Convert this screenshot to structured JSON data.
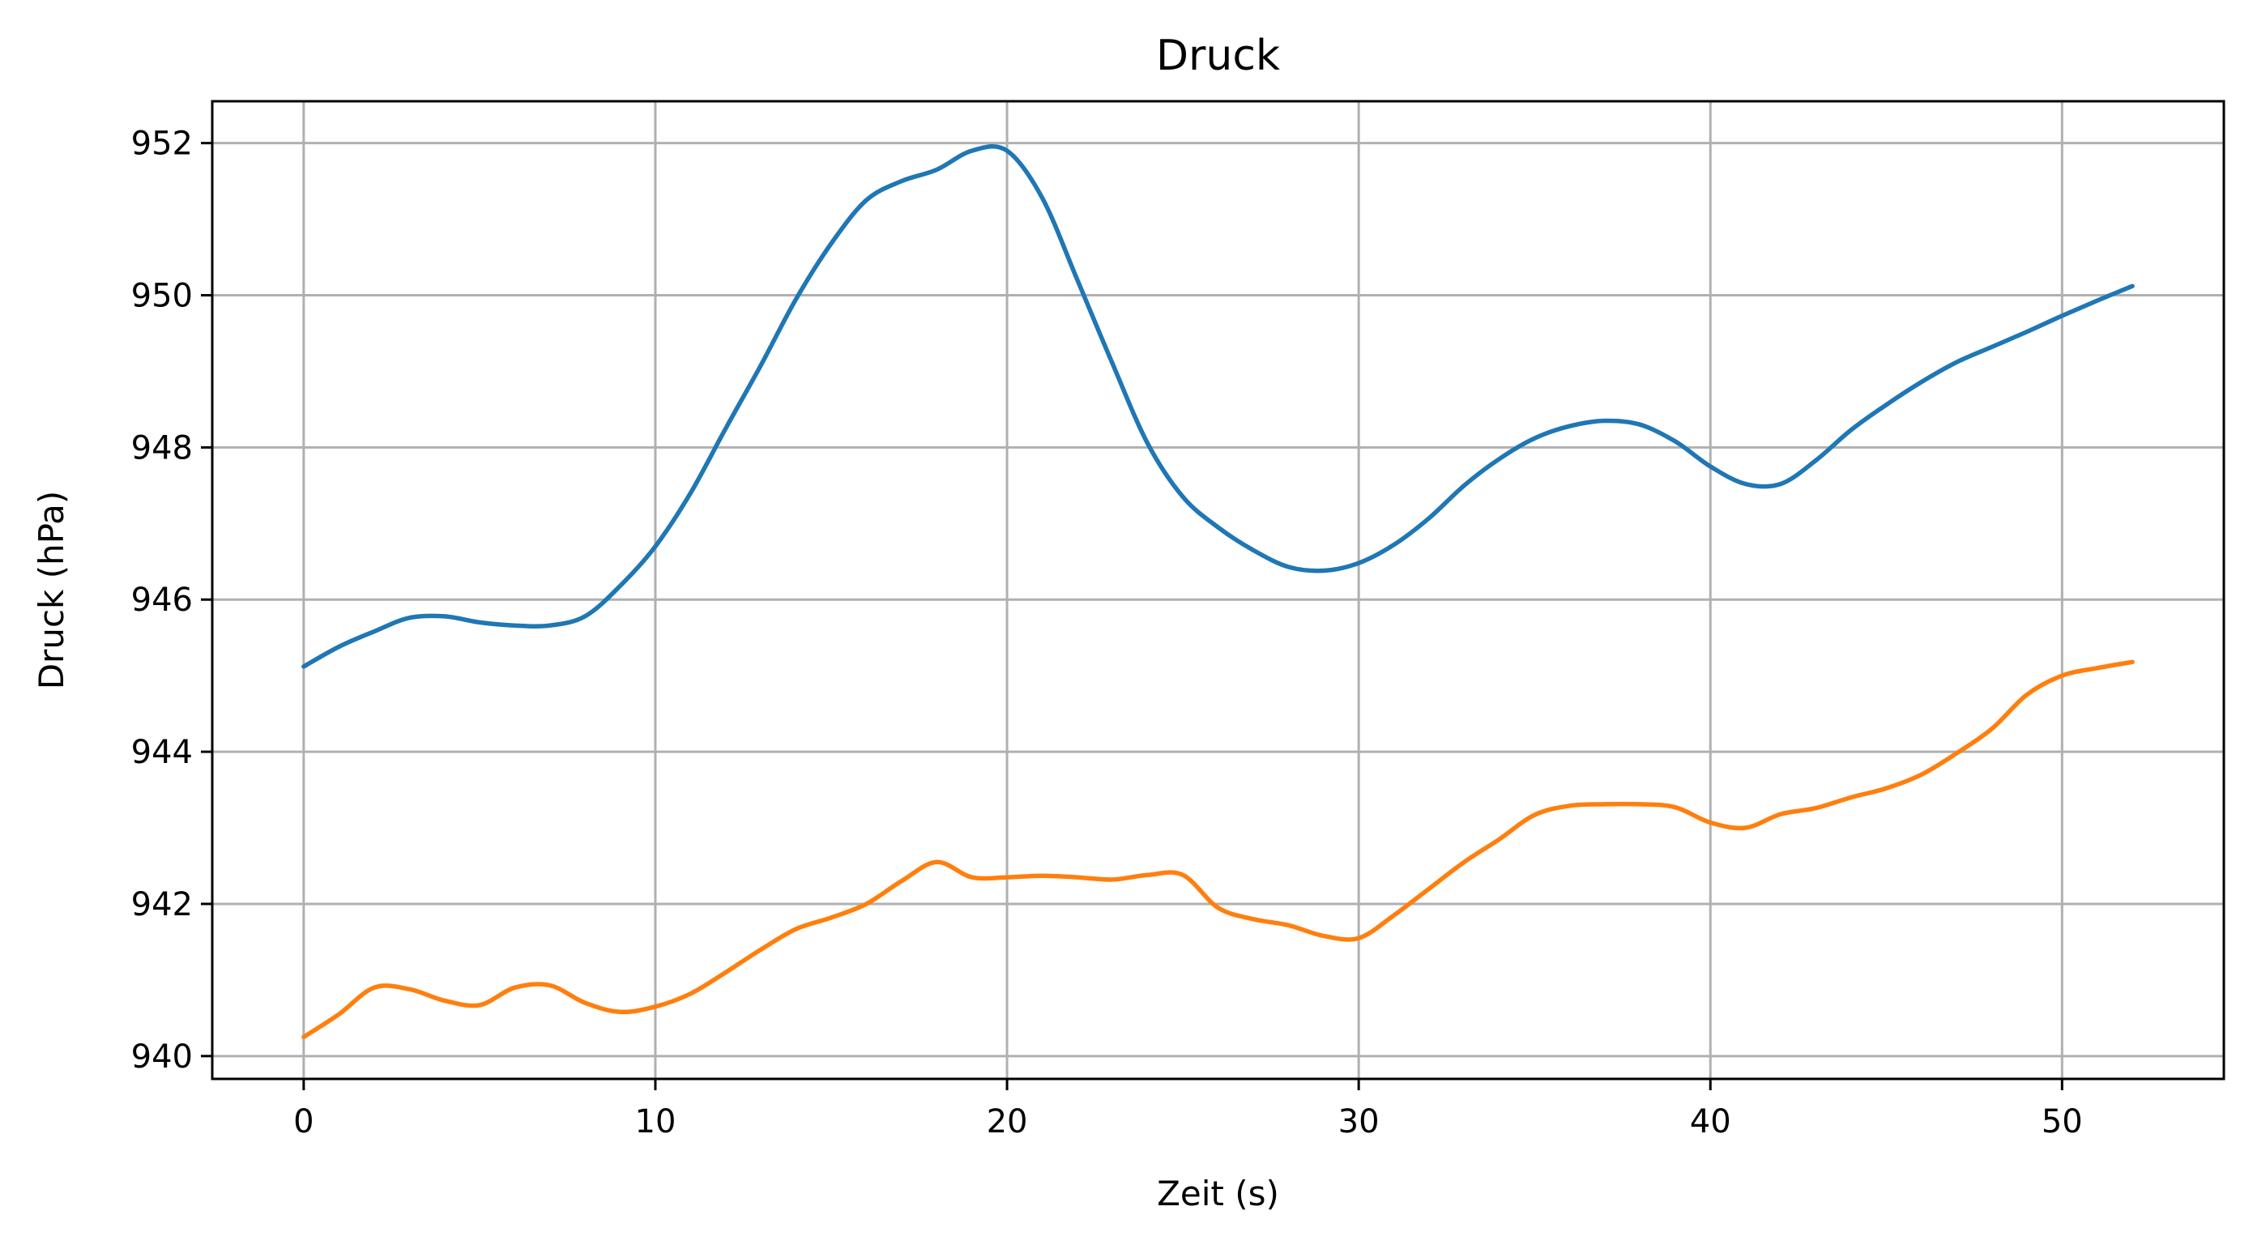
{
  "chart_data": {
    "type": "line",
    "title": "Druck",
    "xlabel": "Zeit (s)",
    "ylabel": "Druck (hPa)",
    "xlim": [
      -2.6,
      54.6
    ],
    "ylim": [
      939.7,
      952.55
    ],
    "xticks": [
      0,
      10,
      20,
      30,
      40,
      50
    ],
    "yticks": [
      940,
      942,
      944,
      946,
      948,
      950,
      952
    ],
    "grid": true,
    "series": [
      {
        "color": "#1f77b4",
        "x": [
          0,
          1,
          2,
          3,
          4,
          5,
          6,
          7,
          8,
          9,
          10,
          11,
          12,
          13,
          14,
          15,
          16,
          17,
          18,
          19,
          20,
          21,
          22,
          23,
          24,
          25,
          26,
          27,
          28,
          29,
          30,
          31,
          32,
          33,
          34,
          35,
          36,
          37,
          38,
          39,
          40,
          41,
          42,
          43,
          44,
          45,
          46,
          47,
          48,
          49,
          50,
          51,
          52
        ],
        "y": [
          945.12,
          945.38,
          945.58,
          945.76,
          945.78,
          945.7,
          945.66,
          945.66,
          945.78,
          946.18,
          946.7,
          947.4,
          948.25,
          949.08,
          949.95,
          950.68,
          951.25,
          951.5,
          951.65,
          951.9,
          951.9,
          951.28,
          950.2,
          949.1,
          948.05,
          947.35,
          946.95,
          946.65,
          946.43,
          946.38,
          946.48,
          946.72,
          947.07,
          947.5,
          947.85,
          948.12,
          948.28,
          948.35,
          948.3,
          948.08,
          947.75,
          947.52,
          947.52,
          947.83,
          948.23,
          948.56,
          948.86,
          949.12,
          949.32,
          949.52,
          949.73,
          949.93,
          950.12
        ]
      },
      {
        "color": "#ff7f0e",
        "x": [
          0,
          1,
          2,
          3,
          4,
          5,
          6,
          7,
          8,
          9,
          10,
          11,
          12,
          13,
          14,
          15,
          16,
          17,
          18,
          19,
          20,
          21,
          22,
          23,
          24,
          25,
          26,
          27,
          28,
          29,
          30,
          31,
          32,
          33,
          34,
          35,
          36,
          37,
          38,
          39,
          40,
          41,
          42,
          43,
          44,
          45,
          46,
          47,
          48,
          49,
          50,
          51,
          52
        ],
        "y": [
          940.25,
          940.55,
          940.9,
          940.88,
          940.73,
          940.67,
          940.9,
          940.93,
          940.7,
          940.58,
          940.65,
          940.82,
          941.1,
          941.4,
          941.67,
          941.82,
          942.0,
          942.3,
          942.55,
          942.35,
          942.35,
          942.37,
          942.35,
          942.32,
          942.38,
          942.38,
          941.95,
          941.8,
          941.72,
          941.58,
          941.55,
          941.85,
          942.2,
          942.55,
          942.85,
          943.17,
          943.29,
          943.31,
          943.31,
          943.27,
          943.07,
          943.0,
          943.18,
          943.26,
          943.4,
          943.52,
          943.7,
          943.98,
          944.3,
          944.75,
          945.0,
          945.1,
          945.18
        ]
      }
    ]
  }
}
